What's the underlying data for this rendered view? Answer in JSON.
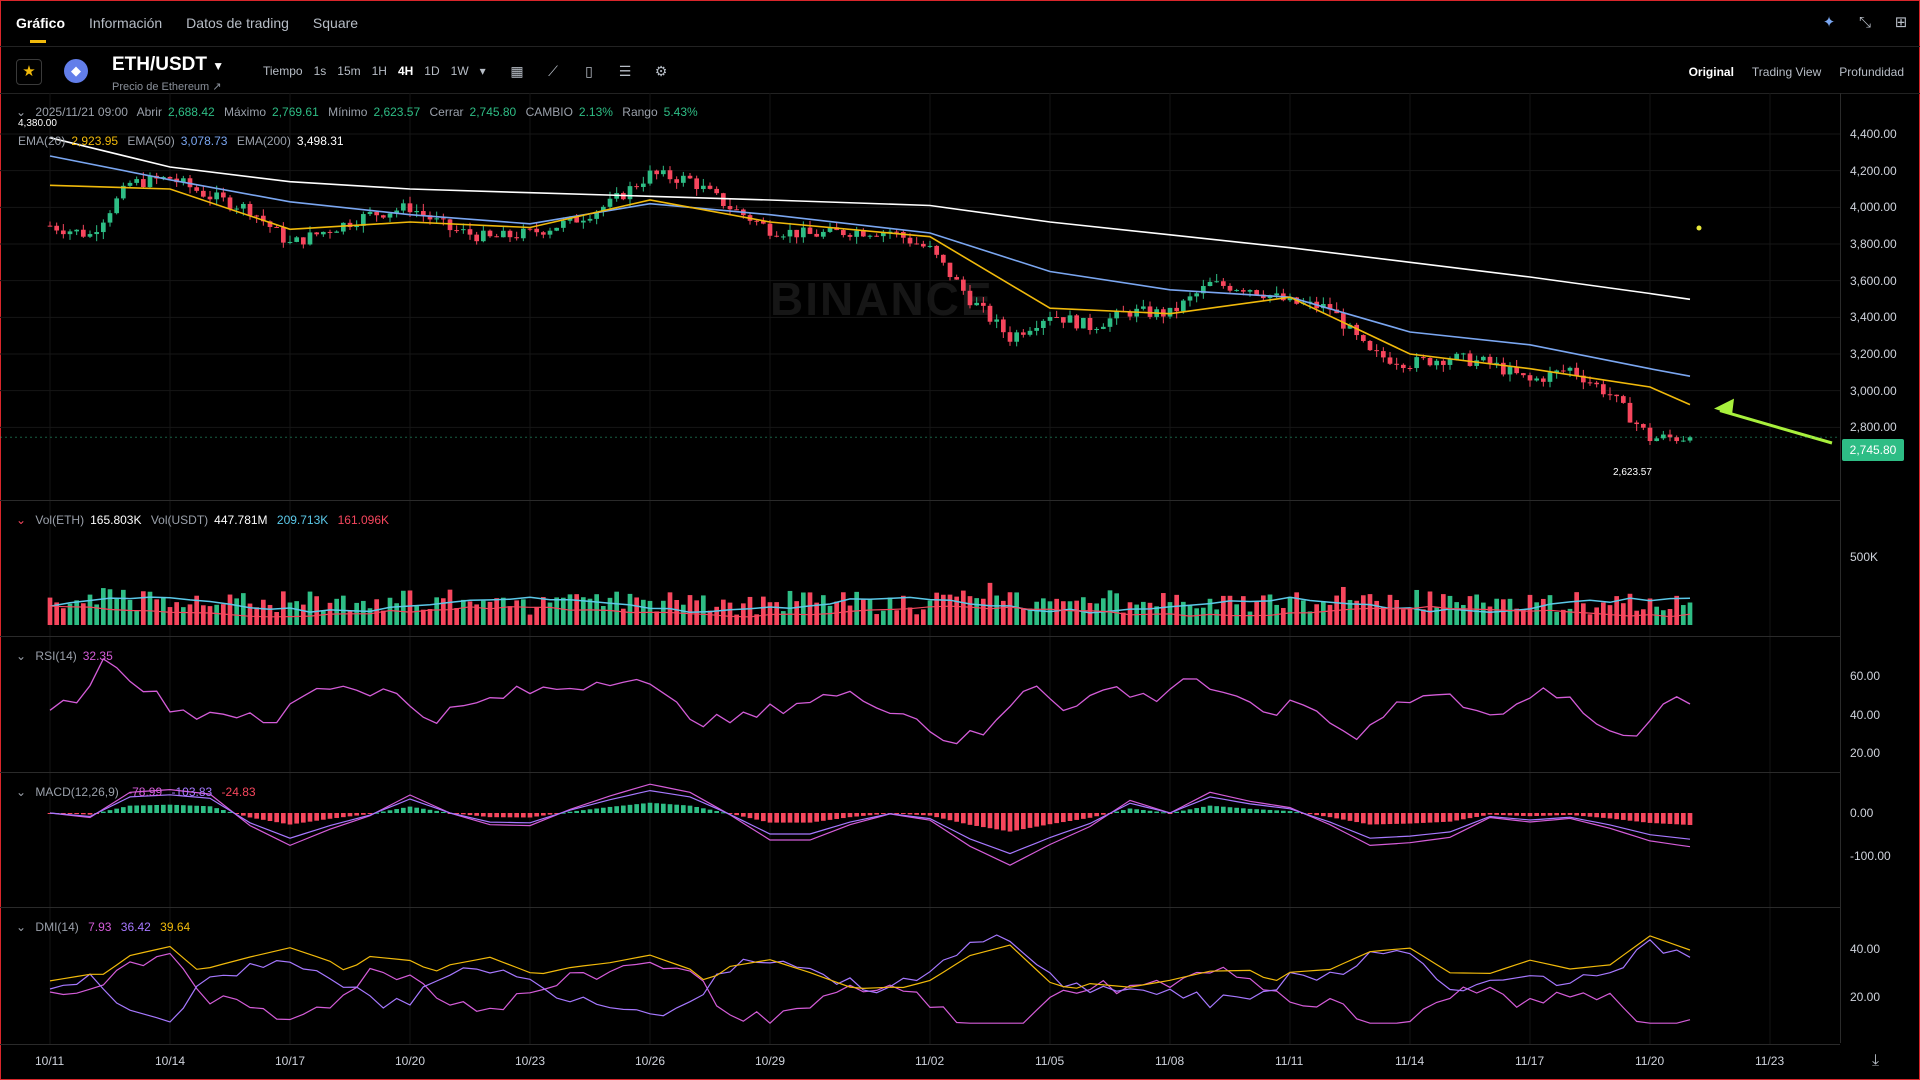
{
  "tabs": [
    "Gráfico",
    "Información",
    "Datos de trading",
    "Square"
  ],
  "top_icons": [
    "sparkle-icon",
    "collapse-icon",
    "grid-icon"
  ],
  "pair": "ETH/USDT",
  "pair_caret": "▼",
  "pair_subtitle": "Precio de Ethereum ↗",
  "intervals": [
    "Tiempo",
    "1s",
    "15m",
    "1H",
    "4H",
    "1D",
    "1W",
    "▾"
  ],
  "selected_interval": "4H",
  "tool_icons": [
    "calendar-icon",
    "indicator-icon",
    "candle-type-icon",
    "template-icon",
    "settings-icon"
  ],
  "views": [
    "Original",
    "Trading View",
    "Profundidad"
  ],
  "selected_view": "Original",
  "ohlc": {
    "date": "2025/11/21 09:00",
    "open_label": "Abrir",
    "open": "2,688.42",
    "high_label": "Máximo",
    "high": "2,769.61",
    "low_label": "Mínimo",
    "low": "2,623.57",
    "close_label": "Cerrar",
    "close": "2,745.80",
    "change_label": "CAMBIO",
    "change": "2.13%",
    "range_label": "Rango",
    "range": "5.43%"
  },
  "ema": {
    "ema20_label": "EMA(20)",
    "ema20": "2,923.95",
    "ema50_label": "EMA(50)",
    "ema50": "3,078.73",
    "ema200_label": "EMA(200)",
    "ema200": "3,498.31"
  },
  "high_marker": "4,380.00",
  "low_marker": "2,623.57",
  "last_price": "2,745.80",
  "watermark": "BINANCE",
  "volume": {
    "eth_label": "Vol(ETH)",
    "eth": "165.803K",
    "usdt_label": "Vol(USDT)",
    "usdt": "447.781M",
    "ma1": "209.713K",
    "ma2": "161.096K"
  },
  "rsi": {
    "label": "RSI(14)",
    "value": "32.35"
  },
  "macd": {
    "label": "MACD(12,26,9)",
    "dif": "-78.99",
    "dea": "-103.83",
    "hist": "-24.83"
  },
  "dmi": {
    "label": "DMI(14)",
    "a": "7.93",
    "b": "36.42",
    "c": "39.64"
  },
  "colors": {
    "up": "#2ebd85",
    "down": "#f6465d",
    "ema20": "#f0b90b",
    "ema50": "#7aa6f0",
    "ema200": "#ffffff",
    "arrow": "#a8f03c"
  },
  "chart_data": {
    "type": "candlestick",
    "x_ticks": [
      "10/11",
      "10/14",
      "10/17",
      "10/20",
      "10/23",
      "10/26",
      "10/29",
      "11/02",
      "11/05",
      "11/08",
      "11/11",
      "11/14",
      "11/17",
      "11/20",
      "11/23"
    ],
    "y_ticks": [
      "4,400.00",
      "4,200.00",
      "4,000.00",
      "3,800.00",
      "3,600.00",
      "3,400.00",
      "3,200.00",
      "3,000.00",
      "2,800.00"
    ],
    "y_range": [
      2600,
      4460
    ],
    "close_waypoints": [
      [
        "10/11",
        3900
      ],
      [
        "10/12",
        3850
      ],
      [
        "10/13",
        4130
      ],
      [
        "10/14",
        4160
      ],
      [
        "10/15",
        4060
      ],
      [
        "10/16",
        3990
      ],
      [
        "10/17",
        3800
      ],
      [
        "10/18",
        3880
      ],
      [
        "10/19",
        3960
      ],
      [
        "10/20",
        4000
      ],
      [
        "10/21",
        3880
      ],
      [
        "10/22",
        3830
      ],
      [
        "10/23",
        3860
      ],
      [
        "10/24",
        3920
      ],
      [
        "10/25",
        4020
      ],
      [
        "10/26",
        4180
      ],
      [
        "10/27",
        4150
      ],
      [
        "10/28",
        4000
      ],
      [
        "10/29",
        3880
      ],
      [
        "10/30",
        3850
      ],
      [
        "10/31",
        3870
      ],
      [
        "11/01",
        3870
      ],
      [
        "11/02",
        3770
      ],
      [
        "11/03",
        3500
      ],
      [
        "11/04",
        3290
      ],
      [
        "11/05",
        3420
      ],
      [
        "11/06",
        3350
      ],
      [
        "11/07",
        3430
      ],
      [
        "11/08",
        3420
      ],
      [
        "11/09",
        3580
      ],
      [
        "11/10",
        3560
      ],
      [
        "11/11",
        3480
      ],
      [
        "11/12",
        3450
      ],
      [
        "11/13",
        3200
      ],
      [
        "11/14",
        3150
      ],
      [
        "11/15",
        3180
      ],
      [
        "11/16",
        3150
      ],
      [
        "11/17",
        3050
      ],
      [
        "11/18",
        3120
      ],
      [
        "11/19",
        2980
      ],
      [
        "11/20",
        2740
      ],
      [
        "11/21",
        2745.8
      ]
    ],
    "ema20_waypoints": [
      [
        "10/11",
        4120
      ],
      [
        "10/14",
        4100
      ],
      [
        "10/17",
        3880
      ],
      [
        "10/20",
        3920
      ],
      [
        "10/23",
        3890
      ],
      [
        "10/26",
        4040
      ],
      [
        "10/29",
        3920
      ],
      [
        "11/02",
        3840
      ],
      [
        "11/05",
        3450
      ],
      [
        "11/08",
        3420
      ],
      [
        "11/11",
        3510
      ],
      [
        "11/14",
        3200
      ],
      [
        "11/17",
        3120
      ],
      [
        "11/20",
        3020
      ],
      [
        "11/21",
        2923.95
      ]
    ],
    "ema50_waypoints": [
      [
        "10/11",
        4280
      ],
      [
        "10/14",
        4150
      ],
      [
        "10/17",
        4030
      ],
      [
        "10/20",
        3960
      ],
      [
        "10/23",
        3910
      ],
      [
        "10/26",
        4020
      ],
      [
        "10/29",
        3960
      ],
      [
        "11/02",
        3860
      ],
      [
        "11/05",
        3650
      ],
      [
        "11/08",
        3550
      ],
      [
        "11/11",
        3510
      ],
      [
        "11/14",
        3320
      ],
      [
        "11/17",
        3250
      ],
      [
        "11/20",
        3120
      ],
      [
        "11/21",
        3078.73
      ]
    ],
    "ema200_waypoints": [
      [
        "10/11",
        4380
      ],
      [
        "10/14",
        4220
      ],
      [
        "10/17",
        4140
      ],
      [
        "10/20",
        4100
      ],
      [
        "10/23",
        4080
      ],
      [
        "10/26",
        4060
      ],
      [
        "10/29",
        4040
      ],
      [
        "11/02",
        4010
      ],
      [
        "11/05",
        3920
      ],
      [
        "11/08",
        3850
      ],
      [
        "11/11",
        3780
      ],
      [
        "11/14",
        3700
      ],
      [
        "11/17",
        3620
      ],
      [
        "11/20",
        3530
      ],
      [
        "11/21",
        3498.31
      ]
    ],
    "volume_ticks": [
      "500K"
    ],
    "rsi_ticks": [
      "60.00",
      "40.00",
      "20.00"
    ],
    "macd_ticks": [
      "0.00",
      "-100.00"
    ],
    "dmi_ticks": [
      "40.00",
      "20.00"
    ]
  }
}
